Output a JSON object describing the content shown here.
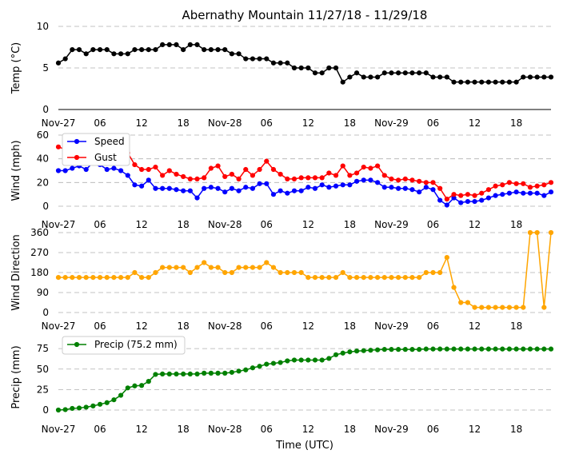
{
  "figure": {
    "title": "Abernathy Mountain 11/27/18 - 11/29/18",
    "xlabel": "Time (UTC)",
    "x_ticks": [
      "Nov-27",
      "06",
      "12",
      "18",
      "Nov-28",
      "06",
      "12",
      "18",
      "Nov-29",
      "06",
      "12",
      "18"
    ]
  },
  "chart_data": [
    {
      "type": "line",
      "id": "temp",
      "title": "Abernathy Mountain 11/27/18 - 11/29/18",
      "xlabel": "Time (UTC)",
      "ylabel": "Temp (°C)",
      "x_unit": "hours since Nov-27 00:00 UTC",
      "xlim": [
        0,
        71
      ],
      "ylim": [
        0,
        10
      ],
      "yticks": [
        "0",
        "5",
        "10"
      ],
      "grid": true,
      "series": [
        {
          "name": "Temp",
          "color": "#000000",
          "values": [
            5.6,
            6.1,
            7.2,
            7.2,
            6.7,
            7.2,
            7.2,
            7.2,
            6.7,
            6.7,
            6.7,
            7.2,
            7.2,
            7.2,
            7.2,
            7.8,
            7.8,
            7.8,
            7.2,
            7.8,
            7.8,
            7.2,
            7.2,
            7.2,
            7.2,
            6.7,
            6.7,
            6.1,
            6.1,
            6.1,
            6.1,
            5.6,
            5.6,
            5.6,
            5.0,
            5.0,
            5.0,
            4.4,
            4.4,
            5.0,
            5.0,
            3.3,
            3.9,
            4.4,
            3.9,
            3.9,
            3.9,
            4.4,
            4.4,
            4.4,
            4.4,
            4.4,
            4.4,
            4.4,
            3.9,
            3.9,
            3.9,
            3.3,
            3.3,
            3.3,
            3.3,
            3.3,
            3.3,
            3.3,
            3.3,
            3.3,
            3.3,
            3.9,
            3.9,
            3.9,
            3.9,
            3.9
          ]
        }
      ]
    },
    {
      "type": "line",
      "id": "wind",
      "ylabel": "Wind (mph)",
      "x_unit": "hours since Nov-27 00:00 UTC",
      "xlim": [
        0,
        71
      ],
      "ylim": [
        0,
        60
      ],
      "yticks": [
        "0",
        "20",
        "40",
        "60"
      ],
      "grid": true,
      "legend": "top-left",
      "series": [
        {
          "name": "Speed",
          "color": "#0000ff",
          "values": [
            30,
            30,
            32,
            34,
            31,
            37,
            35,
            31,
            32,
            30,
            26,
            18,
            17,
            22,
            15,
            15,
            15,
            14,
            13,
            13,
            7,
            15,
            16,
            15,
            12,
            15,
            13,
            16,
            15,
            19,
            19,
            10,
            13,
            11,
            13,
            13,
            16,
            15,
            18,
            16,
            17,
            18,
            18,
            21,
            22,
            22,
            20,
            16,
            16,
            15,
            15,
            14,
            12,
            16,
            14,
            5,
            1,
            7,
            3,
            4,
            4,
            5,
            7,
            9,
            10,
            11,
            12,
            11,
            11,
            11,
            9,
            12
          ]
        },
        {
          "name": "Gust",
          "color": "#ff0000",
          "values": [
            50,
            48,
            49,
            48,
            46,
            54,
            55,
            52,
            50,
            48,
            45,
            35,
            31,
            31,
            33,
            26,
            30,
            27,
            25,
            23,
            23,
            24,
            32,
            34,
            25,
            27,
            23,
            31,
            26,
            31,
            38,
            31,
            27,
            23,
            23,
            24,
            24,
            24,
            24,
            28,
            26,
            34,
            26,
            28,
            33,
            32,
            34,
            26,
            23,
            22,
            23,
            22,
            21,
            20,
            20,
            15,
            6,
            10,
            9,
            10,
            9,
            11,
            14,
            17,
            18,
            20,
            19,
            19,
            16,
            17,
            18,
            20
          ]
        }
      ]
    },
    {
      "type": "line",
      "id": "direction",
      "ylabel": "Wind Direction",
      "x_unit": "hours since Nov-27 00:00 UTC",
      "xlim": [
        0,
        71
      ],
      "ylim": [
        0,
        360
      ],
      "yticks": [
        "0",
        "90",
        "180",
        "270",
        "360"
      ],
      "grid": true,
      "series": [
        {
          "name": "Direction",
          "color": "#ffa500",
          "values": [
            158,
            158,
            158,
            158,
            158,
            158,
            158,
            158,
            158,
            158,
            158,
            180,
            158,
            158,
            180,
            203,
            203,
            203,
            203,
            180,
            203,
            225,
            203,
            203,
            180,
            180,
            203,
            203,
            203,
            203,
            225,
            203,
            180,
            180,
            180,
            180,
            158,
            158,
            158,
            158,
            158,
            180,
            158,
            158,
            158,
            158,
            158,
            158,
            158,
            158,
            158,
            158,
            158,
            180,
            180,
            180,
            248,
            113,
            45,
            45,
            23,
            23,
            23,
            23,
            23,
            23,
            23,
            23,
            360,
            360,
            23,
            360
          ]
        }
      ]
    },
    {
      "type": "line",
      "id": "precip",
      "ylabel": "Precip (mm)",
      "xlabel": "Time (UTC)",
      "x_unit": "hours since Nov-27 00:00 UTC",
      "xlim": [
        0,
        71
      ],
      "ylim": [
        0,
        80
      ],
      "yticks": [
        "0",
        "25",
        "50",
        "75"
      ],
      "grid": true,
      "legend": "top-left",
      "series": [
        {
          "name": "Precip (75.2 mm)",
          "color": "#008000",
          "values": [
            0,
            0.5,
            2,
            2.5,
            3.5,
            5,
            7,
            9,
            12.5,
            18,
            27,
            29.5,
            30,
            35,
            43.5,
            44,
            44,
            44,
            44,
            44,
            44,
            45,
            45,
            45,
            45,
            46,
            47.5,
            49,
            51.5,
            53.5,
            56,
            57,
            58,
            60,
            61,
            61,
            61,
            61,
            61,
            63,
            67.5,
            69.5,
            71,
            72,
            72.5,
            73,
            73.5,
            74,
            74,
            74,
            74,
            74,
            74,
            74.5,
            74.5,
            74.5,
            74.5,
            74.5,
            74.5,
            74.5,
            74.5,
            74.5,
            74.5,
            74.5,
            74.5,
            74.5,
            74.5,
            74.5,
            74.5,
            74.5,
            74.5,
            74.5
          ]
        }
      ]
    }
  ]
}
